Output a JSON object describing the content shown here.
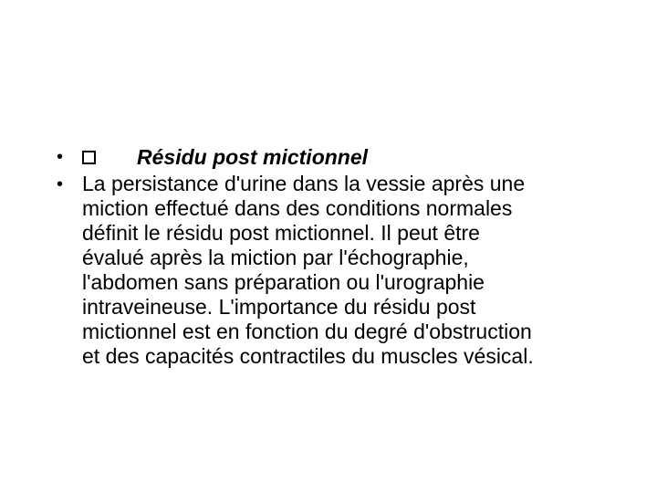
{
  "slide": {
    "heading": "Résidu post mictionnel",
    "body": "La persistance d'urine dans la vessie après une miction effectué dans des conditions normales définit le résidu post mictionnel. Il peut être évalué après la miction par l'échographie, l'abdomen sans préparation ou l'urographie intraveineuse. L'importance du résidu post mictionnel est en fonction du degré d'obstruction et des capacités contractiles du muscles vésical.",
    "background_color": "#ffffff",
    "text_color": "#000000",
    "heading_fontsize": 23,
    "body_fontsize": 23,
    "heading_weight": "bold",
    "heading_style": "italic",
    "body_font": "Comic Sans MS",
    "heading_font": "Arial"
  }
}
